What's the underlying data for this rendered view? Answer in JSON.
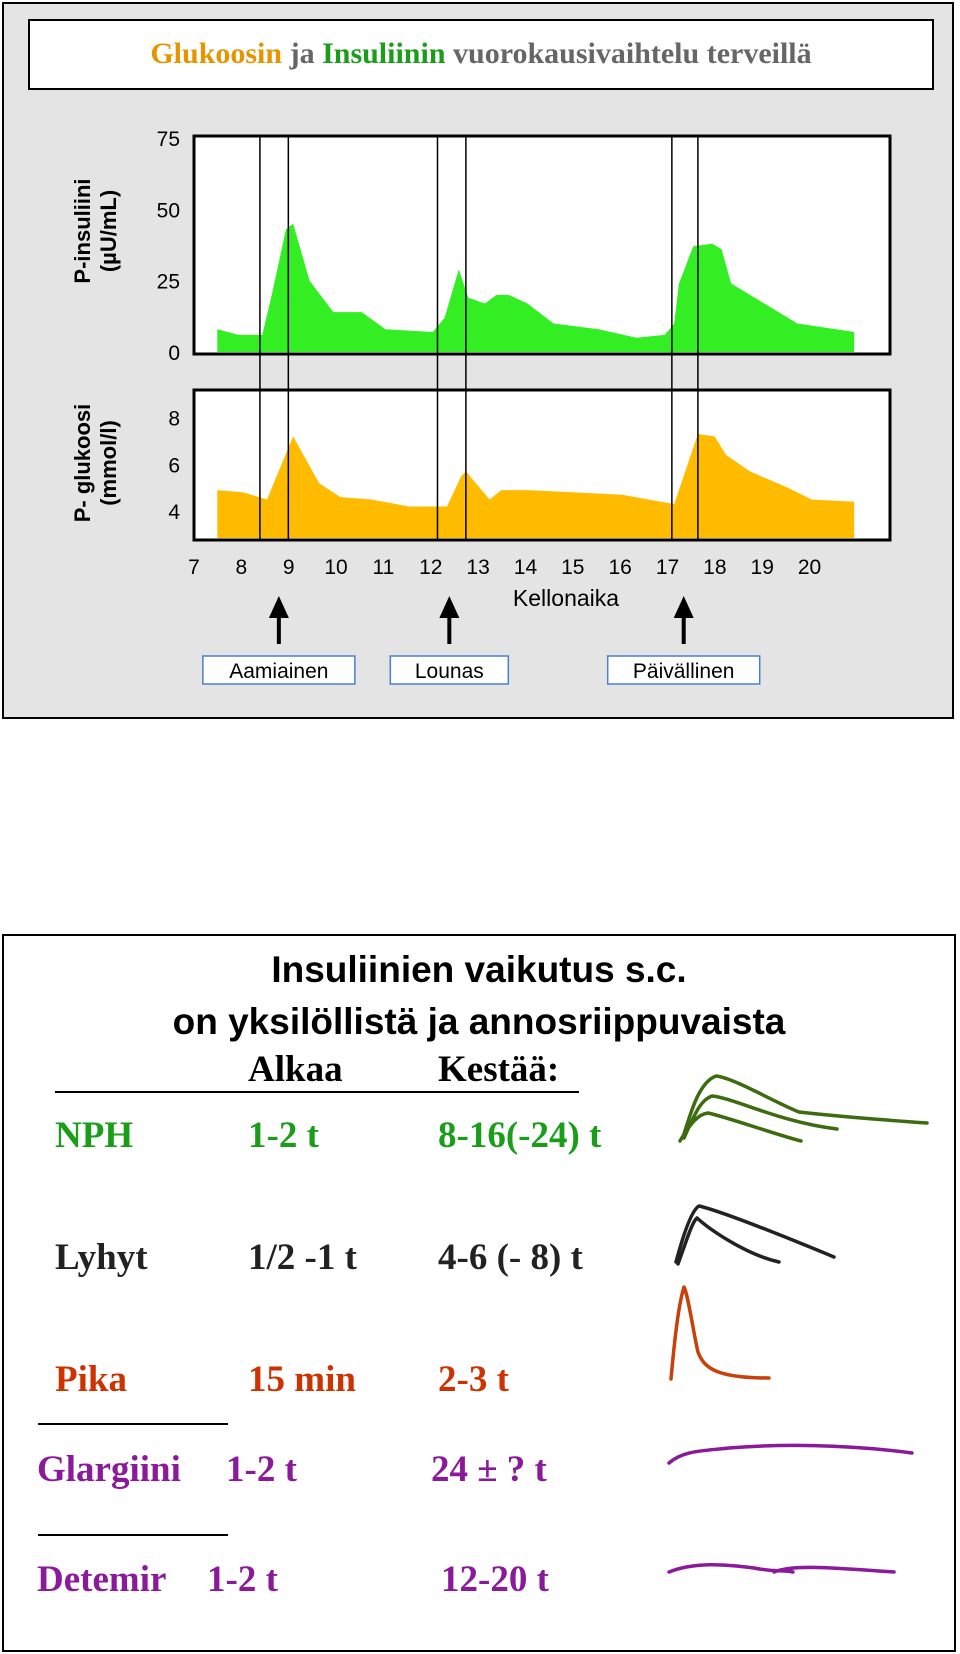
{
  "slide1": {
    "title": {
      "word1": "Glukoosin",
      "word2": " ja ",
      "word3": "Insuliinin",
      "word4": " vuorokausivaihtelu terveillä"
    },
    "colors": {
      "insulin_fill": "#33ee22",
      "glucose_fill": "#ffbb00",
      "title_orange": "#e69500",
      "title_green": "#1a9e1a",
      "title_gray": "#666666"
    },
    "chart_data": [
      {
        "type": "area",
        "ylabel_line1": "P-insuliini",
        "ylabel_line2": "(µU/mL)",
        "yticks": [
          0,
          25,
          50,
          75
        ],
        "ylim": [
          0,
          75
        ],
        "xlim": [
          7,
          21
        ],
        "series": [
          {
            "x": [
              7.45,
              7.9,
              8.4,
              8.6,
              8.9,
              9.05,
              9.4,
              9.9,
              10.5,
              11.0,
              12.0,
              12.25,
              12.55,
              12.75,
              13.1,
              13.35,
              13.6,
              14.0,
              14.55,
              15.5,
              16.3,
              16.9,
              17.1,
              17.2,
              17.5,
              17.9,
              18.1,
              18.3,
              19.7,
              20.9
            ],
            "y": [
              8,
              6,
              6,
              20,
              43,
              45,
              25,
              14,
              14,
              8,
              7,
              12,
              29,
              19,
              17,
              20,
              20,
              17,
              10,
              8,
              5,
              6,
              10,
              24,
              37,
              38,
              36,
              24,
              10,
              7
            ]
          }
        ]
      },
      {
        "type": "area",
        "ylabel_line1": "P- glukoosi",
        "ylabel_line2": "(mmol/l)",
        "yticks": [
          4,
          6,
          8
        ],
        "ylim": [
          2.85,
          9.1
        ],
        "xlim": [
          7,
          21
        ],
        "xticks": [
          7,
          8,
          9,
          10,
          11,
          12,
          13,
          14,
          15,
          16,
          17,
          18,
          19,
          20
        ],
        "xlabel": "Kellonaika",
        "series": [
          {
            "x": [
              7.45,
              8.0,
              8.5,
              9.05,
              9.6,
              10.05,
              10.7,
              11.5,
              12.3,
              12.6,
              12.7,
              13.2,
              13.45,
              14.0,
              15.0,
              16.0,
              17.1,
              17.6,
              17.95,
              18.2,
              18.7,
              19.5,
              20.0,
              20.9
            ],
            "y": [
              4.9,
              4.8,
              4.5,
              7.2,
              5.2,
              4.6,
              4.5,
              4.2,
              4.2,
              5.5,
              5.7,
              4.5,
              4.9,
              4.9,
              4.8,
              4.7,
              4.3,
              7.3,
              7.2,
              6.4,
              5.7,
              5.0,
              4.5,
              4.4
            ]
          }
        ]
      }
    ],
    "meals": [
      {
        "label": "Aamiainen",
        "time": 8.75
      },
      {
        "label": "Lounas",
        "time": 12.35
      },
      {
        "label": "Päivällinen",
        "time": 17.3
      }
    ],
    "meal_markers": [
      8.35,
      8.95,
      12.1,
      12.7,
      17.05,
      17.6
    ]
  },
  "slide2": {
    "title_line1": "Insuliinien vaikutus s.c.",
    "title_line2": "on yksilöllistä ja annosriippuvaista",
    "col_start": "Alkaa",
    "col_duration": "Kestää:",
    "rows": [
      {
        "name": "NPH",
        "start": "1-2 t",
        "duration": "8-16(-24) t",
        "color": "#1a9e1a"
      },
      {
        "name": "Lyhyt",
        "start": "1/2 -1 t",
        "duration": "4-6 (- 8) t",
        "color": "#222222"
      },
      {
        "name": "Pika",
        "start": "15 min",
        "duration": "2-3 t",
        "color": "#cc3300"
      },
      {
        "name": "Glargiini",
        "start": "1-2 t",
        "duration": "24 ± ? t",
        "color": "#8a1a9a"
      },
      {
        "name": "Detemir",
        "start": "1-2 t",
        "duration": "12-20 t",
        "color": "#8a1a9a"
      }
    ],
    "curve_colors": {
      "nph": "#3d6b0f",
      "lyhyt": "#222222",
      "pika": "#c8400a",
      "basal": "#8a1a9a"
    }
  }
}
